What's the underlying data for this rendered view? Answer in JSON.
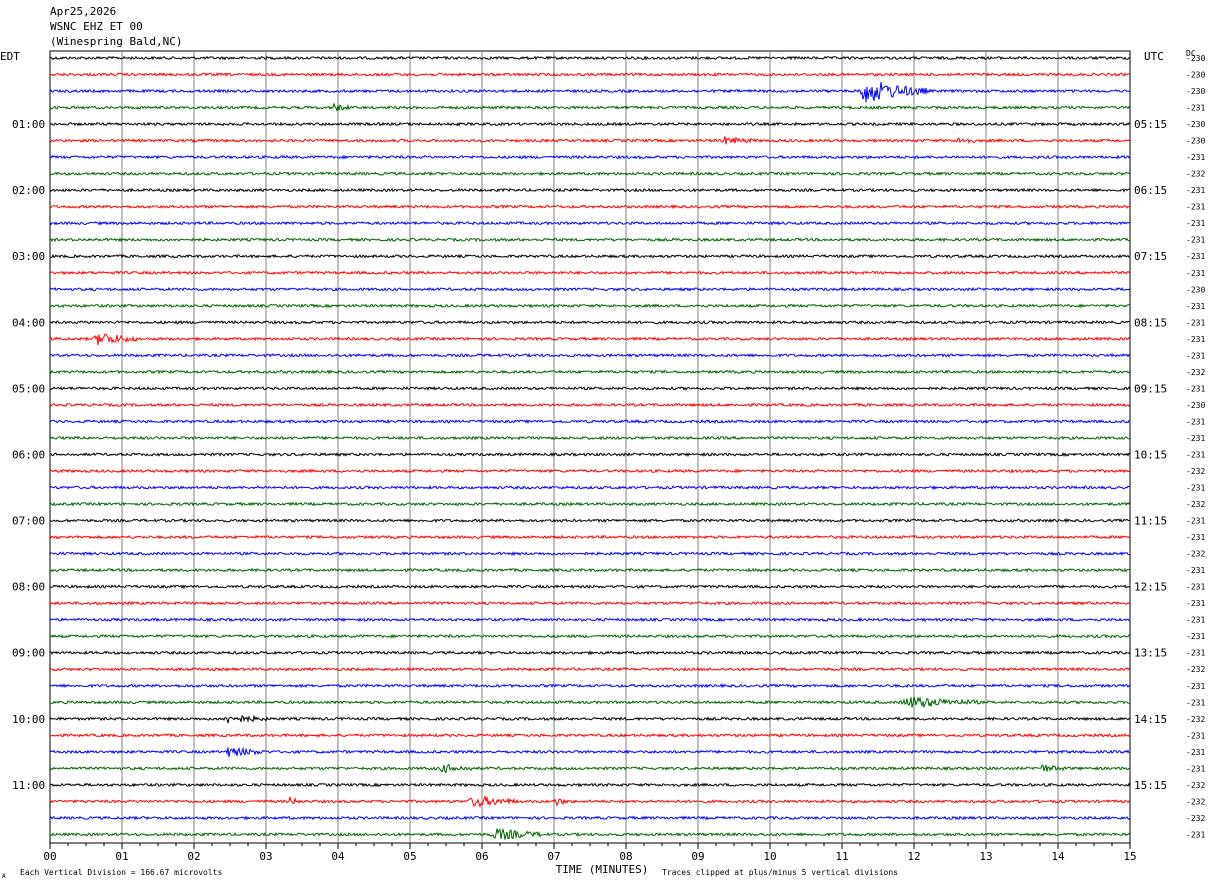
{
  "header": {
    "date": "Apr25,2026",
    "channel": "WSNC EHZ ET 00",
    "station": "(Winespring Bald,NC)"
  },
  "chart_data": {
    "type": "line",
    "title": "",
    "left_timezone": "EDT",
    "right_timezone": "UTC",
    "dc_header": "DC",
    "xlabel": "TIME (MINUTES)",
    "x_ticks": [
      "00",
      "01",
      "02",
      "03",
      "04",
      "05",
      "06",
      "07",
      "08",
      "09",
      "10",
      "11",
      "12",
      "13",
      "14",
      "15"
    ],
    "xlim": [
      0,
      15
    ],
    "left_hour_labels": [
      "01:00",
      "02:00",
      "03:00",
      "04:00",
      "05:00",
      "06:00",
      "07:00",
      "08:00",
      "09:00",
      "10:00",
      "11:00"
    ],
    "right_hour_labels": [
      "05:15",
      "06:15",
      "07:15",
      "08:15",
      "09:15",
      "10:15",
      "11:15",
      "12:15",
      "13:15",
      "14:15",
      "15:15"
    ],
    "trace_colors": [
      "#000000",
      "#ff0000",
      "#0000ff",
      "#006400"
    ],
    "dc_offsets": [
      "-230",
      "-230",
      "-230",
      "-231",
      "-230",
      "-230",
      "-231",
      "-232",
      "-231",
      "-231",
      "-231",
      "-231",
      "-231",
      "-231",
      "-230",
      "-231",
      "-231",
      "-231",
      "-231",
      "-232",
      "-231",
      "-230",
      "-231",
      "-231",
      "-231",
      "-232",
      "-231",
      "-232",
      "-231",
      "-231",
      "-232",
      "-231",
      "-231",
      "-231",
      "-231",
      "-231",
      "-231",
      "-232",
      "-231",
      "-231",
      "-232",
      "-231",
      "-231",
      "-231",
      "-232",
      "-232",
      "-232",
      "-231"
    ],
    "events": [
      {
        "trace": 2,
        "start_min": 11.2,
        "end_min": 12.2,
        "amplitude": 5
      },
      {
        "trace": 3,
        "start_min": 3.9,
        "end_min": 4.2,
        "amplitude": 1.4
      },
      {
        "trace": 5,
        "start_min": 12.6,
        "end_min": 12.85,
        "amplitude": 1.6
      },
      {
        "trace": 5,
        "start_min": 9.3,
        "end_min": 9.8,
        "amplitude": 1.3
      },
      {
        "trace": 17,
        "start_min": 0.6,
        "end_min": 1.2,
        "amplitude": 2.8
      },
      {
        "trace": 39,
        "start_min": 11.8,
        "end_min": 12.9,
        "amplitude": 2.2
      },
      {
        "trace": 40,
        "start_min": 2.4,
        "end_min": 3.0,
        "amplitude": 1.8
      },
      {
        "trace": 42,
        "start_min": 2.4,
        "end_min": 3.0,
        "amplitude": 1.8
      },
      {
        "trace": 43,
        "start_min": 5.4,
        "end_min": 5.9,
        "amplitude": 1.5
      },
      {
        "trace": 43,
        "start_min": 13.7,
        "end_min": 14.1,
        "amplitude": 1.4
      },
      {
        "trace": 45,
        "start_min": 5.8,
        "end_min": 6.5,
        "amplitude": 2.2
      },
      {
        "trace": 45,
        "start_min": 3.3,
        "end_min": 3.5,
        "amplitude": 1.5
      },
      {
        "trace": 45,
        "start_min": 7.0,
        "end_min": 7.2,
        "amplitude": 1.6
      },
      {
        "trace": 47,
        "start_min": 6.1,
        "end_min": 6.9,
        "amplitude": 2.2
      }
    ]
  },
  "footer": {
    "scale_note": "Each Vertical Division =  166.67 microvolts",
    "clip_note": "Traces clipped at plus/minus 5 vertical divisions",
    "corner_mark": "A"
  }
}
